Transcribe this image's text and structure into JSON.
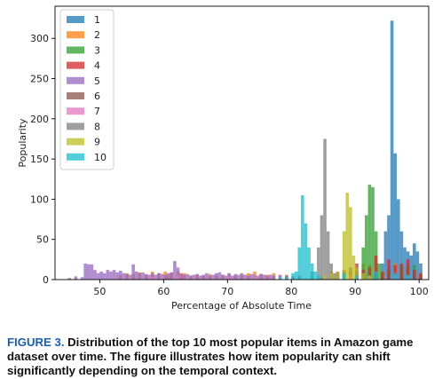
{
  "chart_data": {
    "type": "bar",
    "subtype": "overlaid-histogram",
    "xlabel": "Percentage of Absolute Time",
    "ylabel": "Popularity",
    "xlim": [
      43,
      101.5
    ],
    "ylim": [
      0,
      340
    ],
    "xticks": [
      50,
      60,
      70,
      80,
      90,
      100
    ],
    "yticks": [
      0,
      50,
      100,
      150,
      200,
      250,
      300
    ],
    "bin_width": 0.5,
    "legend_position": "top-left",
    "grid": false,
    "series": [
      {
        "name": "1",
        "color": "#1f77b4",
        "bins": [
          [
            84.5,
            2
          ],
          [
            88,
            3
          ],
          [
            91,
            5
          ],
          [
            93,
            10
          ],
          [
            94,
            20
          ],
          [
            94.5,
            60
          ],
          [
            95,
            80
          ],
          [
            95.5,
            322
          ],
          [
            96,
            157
          ],
          [
            96.5,
            100
          ],
          [
            97,
            60
          ],
          [
            97.5,
            40
          ],
          [
            98,
            35
          ],
          [
            98.5,
            30
          ],
          [
            99,
            45
          ],
          [
            99.5,
            35
          ],
          [
            100,
            20
          ]
        ]
      },
      {
        "name": "2",
        "color": "#ff7f0e",
        "bins": [
          [
            53,
            5
          ],
          [
            54,
            8
          ],
          [
            55,
            7
          ],
          [
            56,
            9
          ],
          [
            57,
            6
          ],
          [
            58,
            10
          ],
          [
            59,
            8
          ],
          [
            60,
            10
          ],
          [
            60.5,
            6
          ],
          [
            61,
            9
          ],
          [
            62,
            10
          ],
          [
            62.5,
            7
          ],
          [
            63,
            8
          ],
          [
            64,
            5
          ],
          [
            65,
            6
          ],
          [
            66,
            5
          ],
          [
            67,
            7
          ],
          [
            68,
            5
          ],
          [
            69,
            6
          ],
          [
            70,
            7
          ],
          [
            71,
            5
          ],
          [
            72,
            6
          ],
          [
            73,
            8
          ],
          [
            74,
            10
          ],
          [
            75,
            7
          ],
          [
            76,
            6
          ],
          [
            77,
            8
          ],
          [
            78,
            5
          ],
          [
            79,
            6
          ],
          [
            80,
            4
          ],
          [
            81,
            5
          ],
          [
            83,
            5
          ],
          [
            86,
            10
          ],
          [
            87,
            8
          ],
          [
            89,
            15
          ],
          [
            90,
            12
          ],
          [
            91,
            20
          ],
          [
            92,
            18
          ],
          [
            94,
            10
          ],
          [
            96,
            20
          ],
          [
            97,
            15
          ],
          [
            98,
            10
          ],
          [
            99,
            8
          ]
        ]
      },
      {
        "name": "3",
        "color": "#2ca02c",
        "bins": [
          [
            87,
            5
          ],
          [
            88,
            10
          ],
          [
            90,
            10
          ],
          [
            91,
            40
          ],
          [
            91.5,
            80
          ],
          [
            92,
            118
          ],
          [
            92.5,
            115
          ],
          [
            93,
            60
          ],
          [
            93.5,
            20
          ],
          [
            94,
            8
          ],
          [
            95,
            12
          ],
          [
            97,
            18
          ],
          [
            98,
            15
          ],
          [
            99,
            18
          ],
          [
            100,
            5
          ]
        ]
      },
      {
        "name": "4",
        "color": "#d62728",
        "bins": [
          [
            86,
            5
          ],
          [
            88,
            8
          ],
          [
            89,
            8
          ],
          [
            90,
            20
          ],
          [
            91,
            12
          ],
          [
            92,
            15
          ],
          [
            93,
            30
          ],
          [
            94,
            10
          ],
          [
            95,
            25
          ],
          [
            96,
            18
          ],
          [
            97,
            20
          ],
          [
            98,
            25
          ],
          [
            99,
            12
          ],
          [
            100,
            8
          ]
        ]
      },
      {
        "name": "5",
        "color": "#9467bd",
        "bins": [
          [
            45,
            2
          ],
          [
            46,
            4
          ],
          [
            47,
            3
          ],
          [
            47.5,
            20
          ],
          [
            48,
            19
          ],
          [
            48.5,
            19
          ],
          [
            49,
            12
          ],
          [
            49.5,
            8
          ],
          [
            50,
            10
          ],
          [
            50.5,
            8
          ],
          [
            51,
            12
          ],
          [
            51.5,
            10
          ],
          [
            52,
            12
          ],
          [
            52.5,
            9
          ],
          [
            53,
            11
          ],
          [
            53.5,
            8
          ],
          [
            54,
            7
          ],
          [
            54.5,
            6
          ],
          [
            55,
            19
          ],
          [
            55.5,
            10
          ],
          [
            56,
            8
          ],
          [
            56.5,
            9
          ],
          [
            57,
            7
          ],
          [
            57.5,
            6
          ],
          [
            58,
            8
          ],
          [
            58.5,
            6
          ],
          [
            59,
            8
          ],
          [
            59.5,
            7
          ],
          [
            60,
            6
          ],
          [
            60.5,
            8
          ],
          [
            61,
            9
          ],
          [
            61.5,
            23
          ],
          [
            62,
            15
          ],
          [
            62.5,
            8
          ],
          [
            63,
            6
          ],
          [
            63.5,
            7
          ],
          [
            64,
            5
          ],
          [
            64.5,
            6
          ],
          [
            65,
            7
          ],
          [
            65.5,
            5
          ],
          [
            66,
            6
          ],
          [
            66.5,
            8
          ],
          [
            67,
            5
          ],
          [
            67.5,
            6
          ],
          [
            68,
            8
          ],
          [
            68.5,
            9
          ],
          [
            69,
            6
          ],
          [
            69.5,
            5
          ],
          [
            70,
            8
          ],
          [
            70.5,
            5
          ],
          [
            71,
            7
          ],
          [
            71.5,
            6
          ],
          [
            72,
            8
          ],
          [
            72.5,
            6
          ],
          [
            73,
            5
          ],
          [
            73.5,
            7
          ],
          [
            74,
            6
          ],
          [
            74.5,
            5
          ],
          [
            75,
            7
          ],
          [
            75.5,
            6
          ],
          [
            76,
            5
          ],
          [
            76.5,
            6
          ],
          [
            77,
            5
          ],
          [
            78,
            6
          ],
          [
            79,
            5
          ],
          [
            80,
            4
          ]
        ]
      },
      {
        "name": "6",
        "color": "#8c564b",
        "bins": [
          [
            87,
            10
          ],
          [
            88,
            12
          ],
          [
            89,
            15
          ],
          [
            90,
            8
          ],
          [
            91,
            10
          ],
          [
            92,
            7
          ],
          [
            93,
            5
          ]
        ]
      },
      {
        "name": "7",
        "color": "#e377c2",
        "bins": [
          [
            58,
            3
          ],
          [
            62,
            5
          ],
          [
            70,
            4
          ],
          [
            74,
            5
          ],
          [
            78,
            4
          ],
          [
            81,
            5
          ],
          [
            86,
            6
          ],
          [
            89,
            5
          ],
          [
            92,
            4
          ],
          [
            96,
            5
          ],
          [
            98,
            4
          ]
        ]
      },
      {
        "name": "8",
        "color": "#7f7f7f",
        "bins": [
          [
            81,
            3
          ],
          [
            83,
            10
          ],
          [
            84,
            40
          ],
          [
            84.5,
            80
          ],
          [
            85,
            175
          ],
          [
            85.5,
            60
          ],
          [
            86,
            20
          ],
          [
            86.5,
            8
          ],
          [
            87,
            5
          ]
        ]
      },
      {
        "name": "9",
        "color": "#bcbd22",
        "bins": [
          [
            85,
            5
          ],
          [
            86,
            8
          ],
          [
            87,
            10
          ],
          [
            88,
            60
          ],
          [
            88.5,
            108
          ],
          [
            89,
            90
          ],
          [
            89.5,
            30
          ],
          [
            90,
            15
          ],
          [
            91,
            8
          ],
          [
            92,
            5
          ]
        ]
      },
      {
        "name": "10",
        "color": "#17becf",
        "bins": [
          [
            78,
            3
          ],
          [
            79,
            4
          ],
          [
            80,
            8
          ],
          [
            80.5,
            10
          ],
          [
            81,
            40
          ],
          [
            81.5,
            105
          ],
          [
            82,
            70
          ],
          [
            82.5,
            40
          ],
          [
            83,
            20
          ],
          [
            83.5,
            10
          ],
          [
            84,
            5
          ],
          [
            88,
            8
          ],
          [
            90,
            5
          ],
          [
            93,
            10
          ],
          [
            96,
            8
          ],
          [
            98,
            6
          ]
        ]
      }
    ]
  },
  "caption": {
    "label": "FIGURE 3.",
    "text": "Distribution of the top 10 most popular items in Amazon game dataset over time. The figure illustrates how item popularity can shift significantly depending on the temporal context."
  }
}
